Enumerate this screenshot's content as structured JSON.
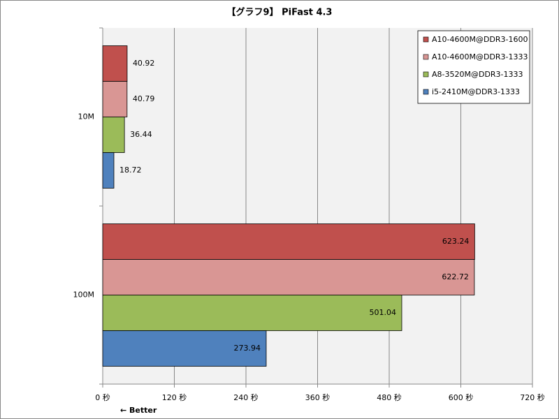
{
  "chart_data": {
    "type": "hbar",
    "title": "【グラフ9】 PiFast 4.3",
    "annotation": "← Better",
    "categories": [
      "10M",
      "100M"
    ],
    "series": [
      {
        "name": "A10-4600M@DDR3-1600",
        "color": "#c0504d",
        "values": [
          40.92,
          623.24
        ]
      },
      {
        "name": "A10-4600M@DDR3-1333",
        "color": "#d99694",
        "values": [
          40.79,
          622.72
        ]
      },
      {
        "name": "A8-3520M@DDR3-1333",
        "color": "#9bbb59",
        "values": [
          36.44,
          501.04
        ]
      },
      {
        "name": "i5-2410M@DDR3-1333",
        "color": "#4f81bd",
        "values": [
          18.72,
          273.94
        ]
      }
    ],
    "xlim": [
      0,
      720
    ],
    "xticks": [
      {
        "value": 0,
        "label": "0 秒"
      },
      {
        "value": 120,
        "label": "120 秒"
      },
      {
        "value": 240,
        "label": "240 秒"
      },
      {
        "value": 360,
        "label": "360 秒"
      },
      {
        "value": 480,
        "label": "480 秒"
      },
      {
        "value": 600,
        "label": "600 秒"
      },
      {
        "value": 720,
        "label": "720 秒"
      }
    ],
    "grid": true,
    "legend": "top-right"
  }
}
